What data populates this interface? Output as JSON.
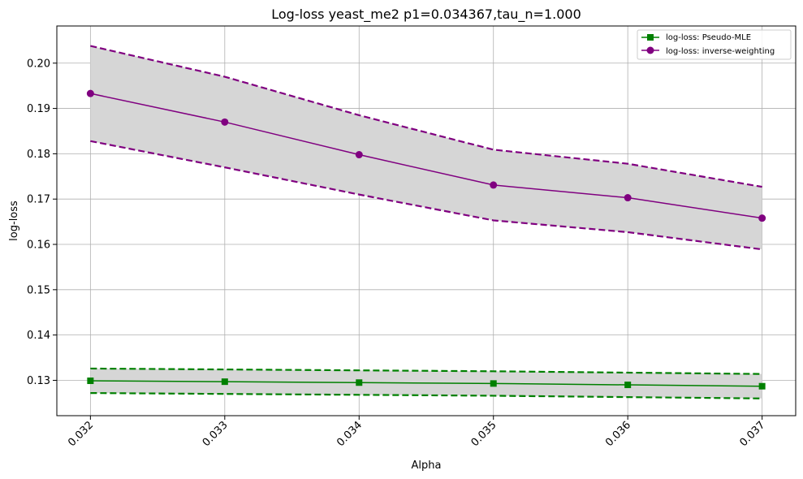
{
  "chart_data": {
    "type": "line",
    "title": "Log-loss yeast_me2 p1=0.034367,tau_n=1.000",
    "xlabel": "Alpha",
    "ylabel": "log-loss",
    "x": [
      0.032,
      0.033,
      0.034,
      0.035,
      0.036,
      0.037
    ],
    "x_tick_labels": [
      "0.032",
      "0.033",
      "0.034",
      "0.035",
      "0.036",
      "0.037"
    ],
    "y_ticks": [
      0.13,
      0.14,
      0.15,
      0.16,
      0.17,
      0.18,
      0.19,
      0.2
    ],
    "y_tick_labels": [
      "0.13",
      "0.14",
      "0.15",
      "0.16",
      "0.17",
      "0.18",
      "0.19",
      "0.20"
    ],
    "xlim": [
      0.03175,
      0.03725
    ],
    "ylim": [
      0.1222,
      0.2082
    ],
    "grid": true,
    "legend_position": "upper right",
    "band_color": "#d6d6d6",
    "series": [
      {
        "name": "log-loss: Pseudo-MLE",
        "color": "#008000",
        "marker": "square",
        "values": [
          0.1299,
          0.1297,
          0.1295,
          0.1293,
          0.129,
          0.1287
        ],
        "upper": [
          0.1326,
          0.1324,
          0.1322,
          0.132,
          0.1317,
          0.1314
        ],
        "lower": [
          0.1272,
          0.127,
          0.1268,
          0.1266,
          0.1263,
          0.126
        ]
      },
      {
        "name": "log-loss: inverse-weighting",
        "color": "#800080",
        "marker": "circle",
        "values": [
          0.1933,
          0.187,
          0.1798,
          0.1731,
          0.1703,
          0.1658
        ],
        "upper": [
          0.2038,
          0.197,
          0.1885,
          0.1809,
          0.1778,
          0.1727
        ],
        "lower": [
          0.1828,
          0.177,
          0.171,
          0.1653,
          0.1627,
          0.1589
        ]
      }
    ]
  }
}
